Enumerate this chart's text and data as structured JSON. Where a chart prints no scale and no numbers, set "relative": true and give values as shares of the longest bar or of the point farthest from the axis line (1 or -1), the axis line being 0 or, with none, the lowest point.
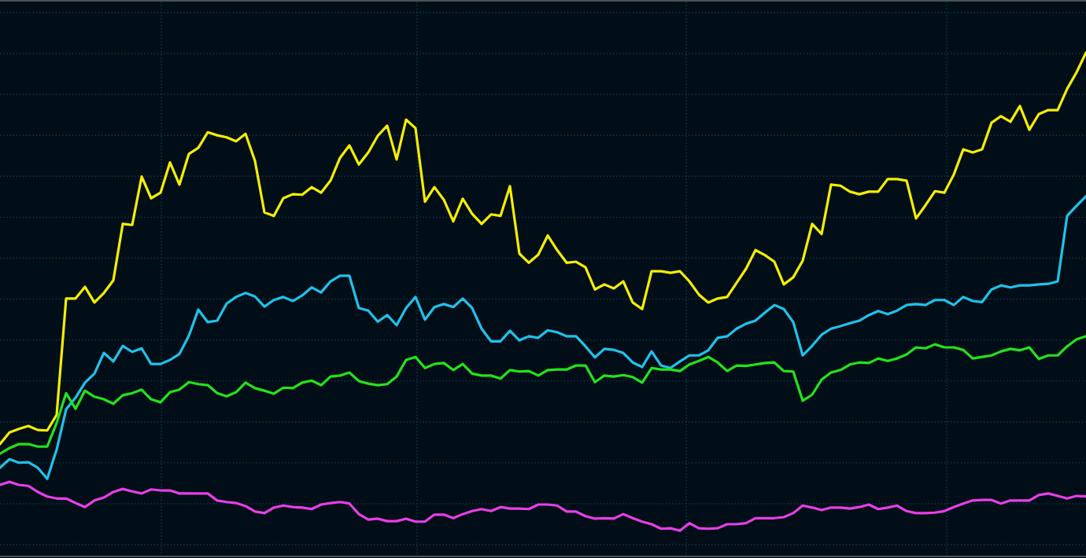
{
  "chart_data": {
    "type": "line",
    "relative": true,
    "grid": true,
    "categories": [
      null,
      null,
      null,
      null,
      null,
      null,
      null,
      null,
      null,
      null,
      null,
      null,
      null,
      null,
      null,
      null,
      null,
      null,
      null,
      null,
      null,
      null,
      null,
      null,
      null,
      null,
      null,
      null,
      null,
      null,
      null,
      null,
      null,
      null,
      null,
      null,
      null,
      null,
      null,
      null,
      null,
      null,
      null,
      null,
      null,
      null,
      null,
      null,
      null,
      null,
      null,
      null,
      null,
      null,
      null,
      null,
      null,
      null,
      null,
      null,
      null,
      null,
      null,
      null,
      null,
      null,
      null,
      null,
      null,
      null,
      null,
      null,
      null,
      null,
      null,
      null,
      null,
      null,
      null,
      null,
      null,
      null,
      null,
      null,
      null,
      null,
      null,
      null,
      null,
      null,
      null,
      null,
      null,
      null,
      null,
      null,
      null,
      null,
      null,
      null,
      null,
      null,
      null,
      null,
      null,
      null,
      null,
      null,
      null,
      null,
      null,
      null,
      null,
      null,
      null,
      null
    ],
    "series": [
      {
        "color": "#f5ef00",
        "values": [
          0.223,
          0.246,
          0.253,
          0.259,
          0.251,
          0.25,
          0.281,
          0.512,
          0.512,
          0.535,
          0.504,
          0.523,
          0.548,
          0.66,
          0.658,
          0.754,
          0.711,
          0.722,
          0.782,
          0.738,
          0.799,
          0.811,
          0.842,
          0.836,
          0.832,
          0.824,
          0.839,
          0.785,
          0.683,
          0.676,
          0.711,
          0.719,
          0.718,
          0.733,
          0.722,
          0.746,
          0.791,
          0.816,
          0.778,
          0.802,
          0.835,
          0.855,
          0.788,
          0.867,
          0.85,
          0.704,
          0.733,
          0.708,
          0.665,
          0.71,
          0.68,
          0.66,
          0.679,
          0.676,
          0.735,
          0.601,
          0.583,
          0.599,
          0.637,
          0.608,
          0.583,
          0.585,
          0.574,
          0.53,
          0.54,
          0.532,
          0.546,
          0.504,
          0.491,
          0.566,
          0.566,
          0.563,
          0.566,
          0.546,
          0.52,
          0.504,
          0.512,
          0.515,
          0.543,
          0.571,
          0.608,
          0.598,
          0.585,
          0.54,
          0.554,
          0.587,
          0.66,
          0.64,
          0.738,
          0.736,
          0.724,
          0.719,
          0.724,
          0.724,
          0.749,
          0.749,
          0.746,
          0.671,
          0.697,
          0.725,
          0.722,
          0.758,
          0.808,
          0.802,
          0.808,
          0.861,
          0.874,
          0.863,
          0.894,
          0.847,
          0.878,
          0.886,
          0.886,
          0.928,
          0.961,
          1.0
        ]
      },
      {
        "color": "#1ec3ec",
        "values": [
          0.176,
          0.193,
          0.186,
          0.187,
          0.176,
          0.154,
          0.212,
          0.292,
          0.315,
          0.345,
          0.363,
          0.404,
          0.387,
          0.418,
          0.406,
          0.413,
          0.382,
          0.382,
          0.39,
          0.402,
          0.438,
          0.49,
          0.465,
          0.468,
          0.502,
          0.515,
          0.523,
          0.516,
          0.496,
          0.509,
          0.515,
          0.507,
          0.518,
          0.534,
          0.524,
          0.546,
          0.557,
          0.557,
          0.493,
          0.488,
          0.466,
          0.479,
          0.459,
          0.493,
          0.515,
          0.47,
          0.495,
          0.501,
          0.495,
          0.512,
          0.493,
          0.452,
          0.427,
          0.427,
          0.448,
          0.429,
          0.437,
          0.434,
          0.449,
          0.445,
          0.437,
          0.437,
          0.417,
          0.395,
          0.412,
          0.41,
          0.404,
          0.385,
          0.376,
          0.407,
          0.379,
          0.374,
          0.387,
          0.399,
          0.399,
          0.409,
          0.434,
          0.437,
          0.452,
          0.462,
          0.468,
          0.484,
          0.499,
          0.491,
          0.465,
          0.399,
          0.418,
          0.44,
          0.452,
          0.457,
          0.463,
          0.468,
          0.479,
          0.487,
          0.481,
          0.488,
          0.499,
          0.501,
          0.499,
          0.509,
          0.509,
          0.499,
          0.515,
          0.507,
          0.505,
          0.53,
          0.538,
          0.534,
          0.538,
          0.538,
          0.54,
          0.541,
          0.546,
          0.676,
          0.696,
          0.715
        ]
      },
      {
        "color": "#22e41c",
        "values": [
          0.204,
          0.215,
          0.223,
          0.223,
          0.218,
          0.218,
          0.265,
          0.324,
          0.293,
          0.329,
          0.317,
          0.312,
          0.303,
          0.32,
          0.324,
          0.331,
          0.312,
          0.306,
          0.326,
          0.331,
          0.346,
          0.342,
          0.34,
          0.324,
          0.318,
          0.326,
          0.345,
          0.334,
          0.329,
          0.323,
          0.335,
          0.334,
          0.345,
          0.349,
          0.34,
          0.357,
          0.359,
          0.365,
          0.348,
          0.343,
          0.34,
          0.342,
          0.357,
          0.39,
          0.396,
          0.374,
          0.382,
          0.384,
          0.37,
          0.382,
          0.363,
          0.359,
          0.359,
          0.353,
          0.37,
          0.367,
          0.368,
          0.359,
          0.37,
          0.371,
          0.371,
          0.379,
          0.379,
          0.346,
          0.359,
          0.357,
          0.36,
          0.356,
          0.345,
          0.374,
          0.371,
          0.371,
          0.368,
          0.381,
          0.388,
          0.396,
          0.385,
          0.368,
          0.379,
          0.378,
          0.381,
          0.384,
          0.385,
          0.368,
          0.367,
          0.309,
          0.321,
          0.351,
          0.365,
          0.37,
          0.381,
          0.385,
          0.384,
          0.393,
          0.388,
          0.393,
          0.401,
          0.415,
          0.413,
          0.421,
          0.415,
          0.415,
          0.41,
          0.393,
          0.396,
          0.399,
          0.407,
          0.412,
          0.409,
          0.415,
          0.392,
          0.399,
          0.399,
          0.417,
          0.431,
          0.437
        ]
      },
      {
        "color": "#e83ee8",
        "values": [
          0.142,
          0.148,
          0.142,
          0.14,
          0.128,
          0.119,
          0.115,
          0.115,
          0.106,
          0.098,
          0.111,
          0.117,
          0.128,
          0.134,
          0.129,
          0.125,
          0.133,
          0.131,
          0.131,
          0.125,
          0.125,
          0.125,
          0.125,
          0.111,
          0.108,
          0.106,
          0.1,
          0.089,
          0.086,
          0.097,
          0.101,
          0.098,
          0.097,
          0.094,
          0.103,
          0.106,
          0.108,
          0.105,
          0.084,
          0.073,
          0.075,
          0.07,
          0.07,
          0.075,
          0.069,
          0.069,
          0.083,
          0.083,
          0.076,
          0.084,
          0.09,
          0.094,
          0.09,
          0.098,
          0.095,
          0.095,
          0.094,
          0.103,
          0.103,
          0.101,
          0.089,
          0.089,
          0.08,
          0.075,
          0.076,
          0.075,
          0.084,
          0.076,
          0.069,
          0.064,
          0.055,
          0.056,
          0.051,
          0.066,
          0.056,
          0.055,
          0.056,
          0.064,
          0.064,
          0.066,
          0.076,
          0.076,
          0.076,
          0.078,
          0.086,
          0.101,
          0.097,
          0.092,
          0.097,
          0.097,
          0.095,
          0.098,
          0.103,
          0.094,
          0.097,
          0.101,
          0.09,
          0.086,
          0.086,
          0.087,
          0.09,
          0.098,
          0.105,
          0.111,
          0.112,
          0.112,
          0.105,
          0.111,
          0.111,
          0.111,
          0.122,
          0.125,
          0.12,
          0.115,
          0.12,
          0.119
        ]
      }
    ]
  }
}
